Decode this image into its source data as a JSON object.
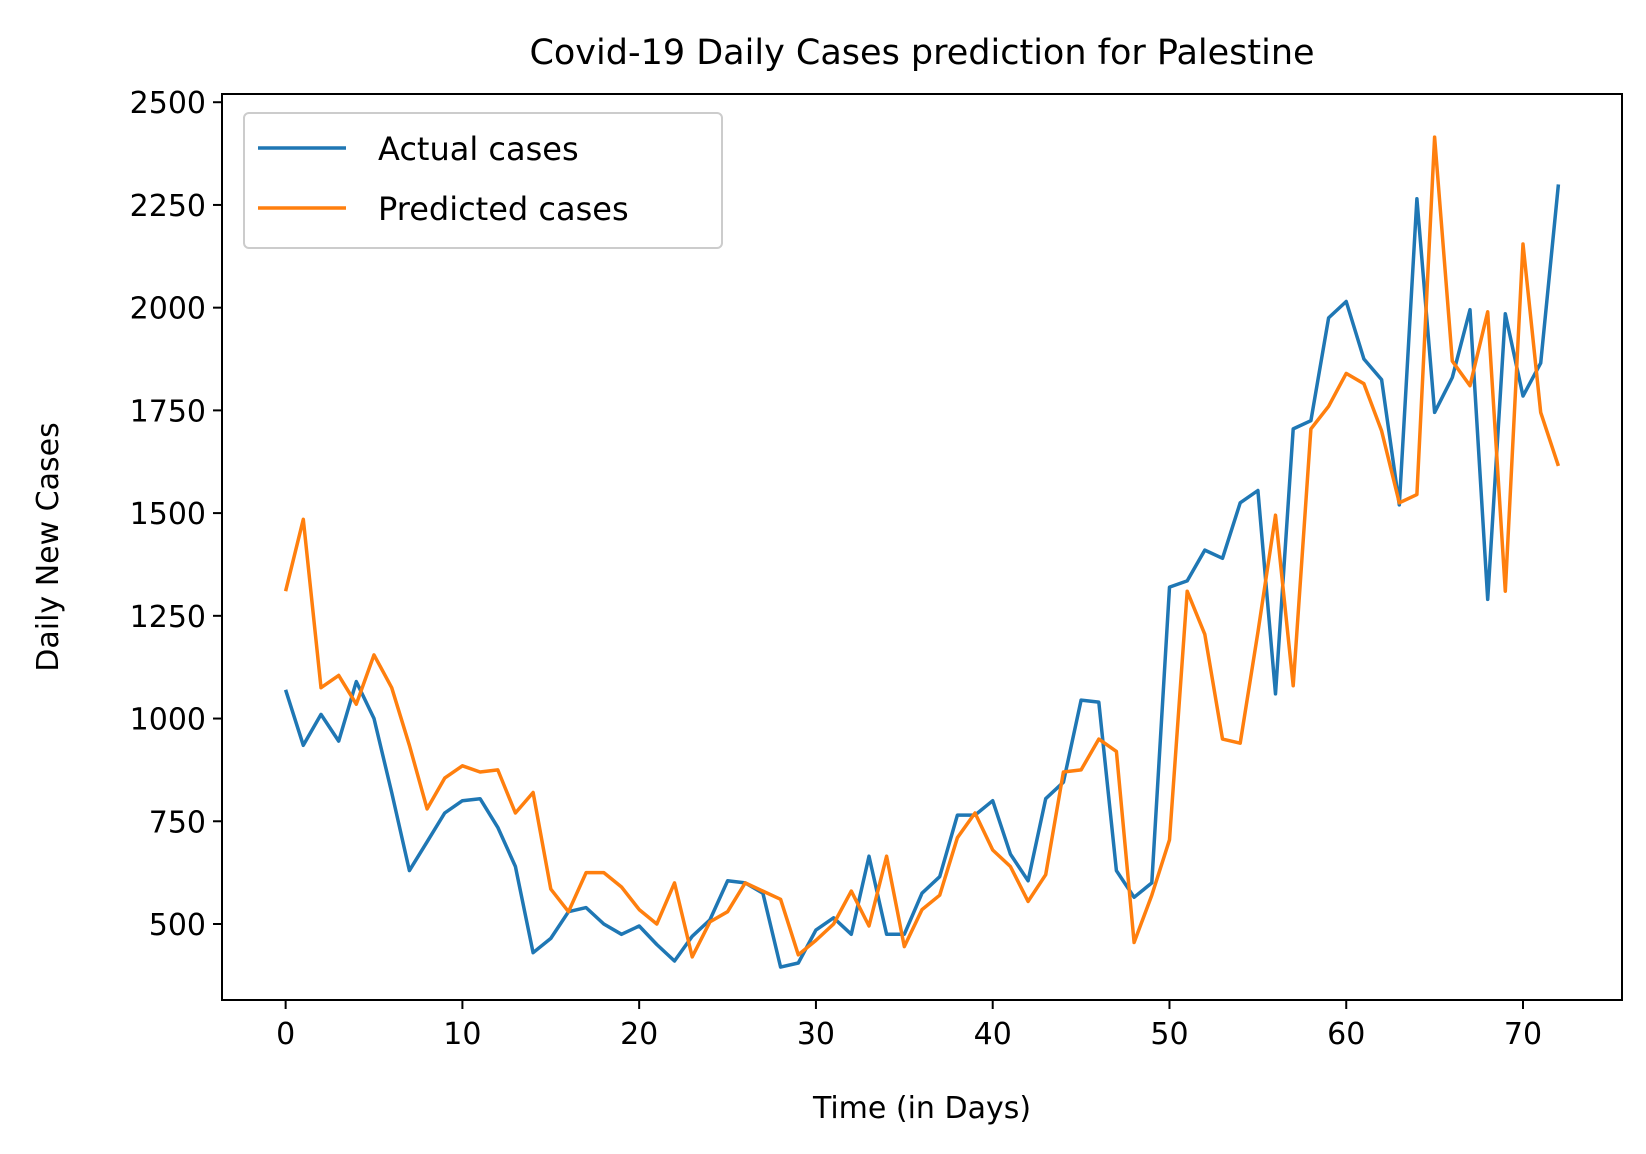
{
  "chart_data": {
    "type": "line",
    "title": "Covid-19 Daily Cases prediction for Palestine",
    "xlabel": "Time (in Days)",
    "ylabel": "Daily New Cases",
    "xlim": [
      -3.6,
      75.6
    ],
    "ylim": [
      315,
      2520
    ],
    "xticks": [
      0,
      10,
      20,
      30,
      40,
      50,
      60,
      70
    ],
    "yticks": [
      500,
      750,
      1000,
      1250,
      1500,
      1750,
      2000,
      2250,
      2500
    ],
    "grid": false,
    "legend_position": "top-left",
    "x": [
      0,
      1,
      2,
      3,
      4,
      5,
      6,
      7,
      8,
      9,
      10,
      11,
      12,
      13,
      14,
      15,
      16,
      17,
      18,
      19,
      20,
      21,
      22,
      23,
      24,
      25,
      26,
      27,
      28,
      29,
      30,
      31,
      32,
      33,
      34,
      35,
      36,
      37,
      38,
      39,
      40,
      41,
      42,
      43,
      44,
      45,
      46,
      47,
      48,
      49,
      50,
      51,
      52,
      53,
      54,
      55,
      56,
      57,
      58,
      59,
      60,
      61,
      62,
      63,
      64,
      65,
      66,
      67,
      68,
      69,
      70,
      71,
      72
    ],
    "series": [
      {
        "name": "Actual cases",
        "color": "#1f77b4",
        "values": [
          1070,
          935,
          1010,
          945,
          1090,
          1000,
          820,
          630,
          700,
          770,
          800,
          805,
          735,
          640,
          430,
          465,
          530,
          540,
          500,
          475,
          495,
          450,
          410,
          470,
          510,
          605,
          600,
          575,
          395,
          405,
          485,
          515,
          475,
          665,
          475,
          475,
          575,
          615,
          765,
          765,
          800,
          670,
          605,
          805,
          845,
          1045,
          1040,
          630,
          565,
          600,
          1320,
          1335,
          1410,
          1390,
          1525,
          1555,
          1060,
          1705,
          1725,
          1975,
          2015,
          1875,
          1825,
          1520,
          2265,
          1745,
          1830,
          1995,
          1290,
          1985,
          1785,
          1865,
          2300
        ]
      },
      {
        "name": "Predicted cases",
        "color": "#ff7f0e",
        "values": [
          1310,
          1485,
          1075,
          1105,
          1035,
          1155,
          1075,
          935,
          780,
          855,
          885,
          870,
          875,
          770,
          820,
          585,
          530,
          625,
          625,
          590,
          535,
          500,
          600,
          420,
          505,
          530,
          600,
          580,
          560,
          425,
          460,
          500,
          580,
          495,
          665,
          445,
          535,
          570,
          710,
          770,
          680,
          640,
          555,
          620,
          870,
          875,
          950,
          920,
          455,
          570,
          705,
          1310,
          1205,
          950,
          940,
          1210,
          1495,
          1080,
          1705,
          1760,
          1840,
          1815,
          1700,
          1525,
          1545,
          2415,
          1870,
          1810,
          1990,
          1310,
          2155,
          1745,
          1615
        ]
      }
    ]
  }
}
